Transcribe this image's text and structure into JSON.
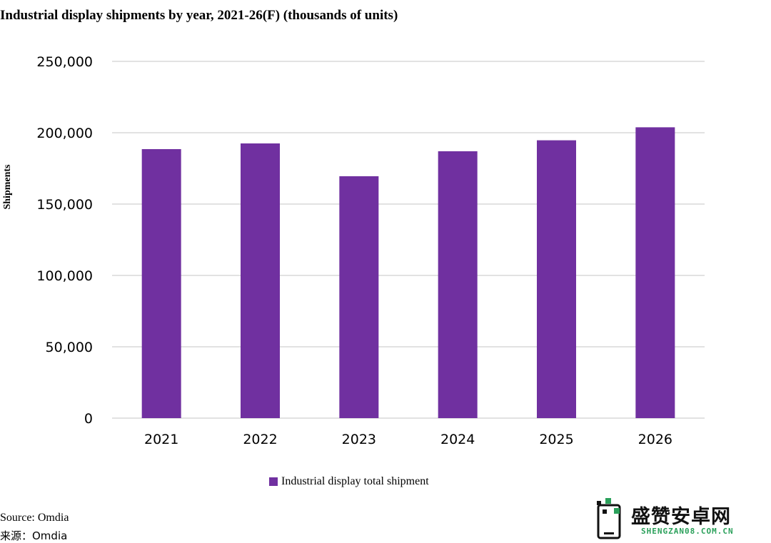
{
  "chart_data": {
    "type": "bar",
    "title": "Industrial display shipments by year, 2021-26(F) (thousands of units)",
    "xlabel": "",
    "ylabel": "Shipments",
    "categories": [
      "2021",
      "2022",
      "2023",
      "2024",
      "2025",
      "2026"
    ],
    "series": [
      {
        "name": "Industrial display total shipment",
        "values": [
          188500,
          192500,
          169500,
          187000,
          194700,
          203800
        ]
      }
    ],
    "ylim": [
      0,
      250000
    ],
    "yticks": [
      0,
      50000,
      100000,
      150000,
      200000,
      250000
    ],
    "ytick_labels": [
      "0",
      "50,000",
      "100,000",
      "150,000",
      "200,000",
      "250,000"
    ],
    "grid": true,
    "legend_position": "bottom-center",
    "colors": {
      "bar": "#7030a0",
      "grid": "#d9d9d9"
    }
  },
  "source": {
    "en": "Source: Omdia",
    "cn": "来源：Omdia"
  },
  "watermark": {
    "title": "盛赞安卓网",
    "url": "SHENGZAN08.COM.CN",
    "icon": "phone-logo-icon",
    "color": "#2aa05a"
  }
}
